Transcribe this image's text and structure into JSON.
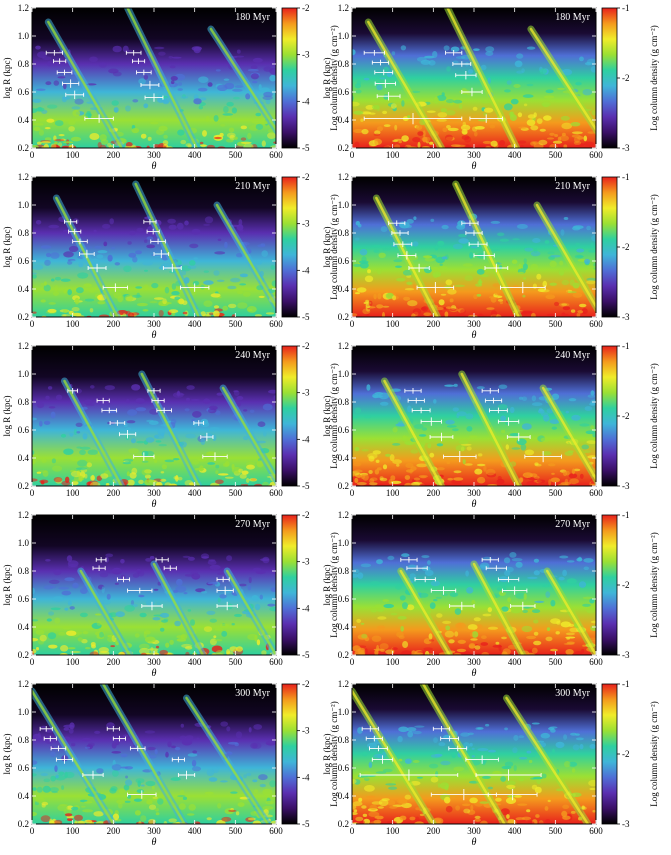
{
  "figure": {
    "colorbar_label": "Log column density (g cm⁻²)",
    "x_axis_label": "θ",
    "y_axis_label": "log R (kpc)",
    "x_ticks": [
      "0",
      "100",
      "200",
      "300",
      "400",
      "500",
      "600"
    ],
    "y_ticks": [
      "0.2",
      "0.4",
      "0.6",
      "0.8",
      "1.0",
      "1.2"
    ],
    "colormap": [
      "#000000",
      "#3a0f66",
      "#5a2fb0",
      "#4f6fd6",
      "#3fb5d8",
      "#2fd0a0",
      "#9be034",
      "#f0ec2a",
      "#f49a1d",
      "#e8211c"
    ],
    "errorbar_color": "#ffffff"
  },
  "chart_data": [
    {
      "type": "heatmap",
      "time_label": "180 Myr",
      "column": "left",
      "xlim": [
        0,
        600
      ],
      "ylim": [
        0.2,
        1.2
      ],
      "cbar_ticks": [
        "-5",
        "-4",
        "-3",
        "-2"
      ],
      "cbar_range": [
        -5,
        -2
      ],
      "arms": [
        {
          "start": 40,
          "slope": 180,
          "scale": 0.9
        },
        {
          "start": 235,
          "slope": 170,
          "scale": 1.0
        },
        {
          "start": 440,
          "slope": 190,
          "scale": 0.85
        }
      ],
      "errorbars": [
        {
          "x": 55,
          "y": 0.88,
          "xerr": 20,
          "yerr": 0.02
        },
        {
          "x": 68,
          "y": 0.82,
          "xerr": 15,
          "yerr": 0.02
        },
        {
          "x": 80,
          "y": 0.74,
          "xerr": 18,
          "yerr": 0.02
        },
        {
          "x": 95,
          "y": 0.66,
          "xerr": 20,
          "yerr": 0.03
        },
        {
          "x": 105,
          "y": 0.58,
          "xerr": 22,
          "yerr": 0.03
        },
        {
          "x": 165,
          "y": 0.41,
          "xerr": 35,
          "yerr": 0.03
        },
        {
          "x": 250,
          "y": 0.88,
          "xerr": 18,
          "yerr": 0.02
        },
        {
          "x": 262,
          "y": 0.82,
          "xerr": 15,
          "yerr": 0.02
        },
        {
          "x": 275,
          "y": 0.74,
          "xerr": 18,
          "yerr": 0.02
        },
        {
          "x": 290,
          "y": 0.65,
          "xerr": 22,
          "yerr": 0.03
        },
        {
          "x": 300,
          "y": 0.56,
          "xerr": 22,
          "yerr": 0.03
        }
      ]
    },
    {
      "type": "heatmap",
      "time_label": "180 Myr",
      "column": "right",
      "xlim": [
        0,
        600
      ],
      "ylim": [
        0.2,
        1.2
      ],
      "cbar_ticks": [
        "-3",
        "-2",
        "-1"
      ],
      "cbar_range": [
        -3,
        -1
      ],
      "arms": [
        {
          "start": 40,
          "slope": 180,
          "scale": 0.9
        },
        {
          "start": 235,
          "slope": 170,
          "scale": 1.0
        },
        {
          "start": 440,
          "slope": 190,
          "scale": 0.85
        }
      ],
      "errorbars": [
        {
          "x": 55,
          "y": 0.88,
          "xerr": 25,
          "yerr": 0.02
        },
        {
          "x": 70,
          "y": 0.81,
          "xerr": 20,
          "yerr": 0.02
        },
        {
          "x": 78,
          "y": 0.74,
          "xerr": 22,
          "yerr": 0.02
        },
        {
          "x": 82,
          "y": 0.66,
          "xerr": 25,
          "yerr": 0.03
        },
        {
          "x": 90,
          "y": 0.57,
          "xerr": 28,
          "yerr": 0.03
        },
        {
          "x": 150,
          "y": 0.41,
          "xerr": 120,
          "yerr": 0.04
        },
        {
          "x": 250,
          "y": 0.88,
          "xerr": 20,
          "yerr": 0.02
        },
        {
          "x": 270,
          "y": 0.8,
          "xerr": 22,
          "yerr": 0.02
        },
        {
          "x": 280,
          "y": 0.72,
          "xerr": 25,
          "yerr": 0.03
        },
        {
          "x": 295,
          "y": 0.6,
          "xerr": 25,
          "yerr": 0.03
        },
        {
          "x": 330,
          "y": 0.41,
          "xerr": 40,
          "yerr": 0.03
        }
      ]
    },
    {
      "type": "heatmap",
      "time_label": "210 Myr",
      "column": "left",
      "xlim": [
        0,
        600
      ],
      "ylim": [
        0.2,
        1.2
      ],
      "cbar_ticks": [
        "-5",
        "-4",
        "-3",
        "-2"
      ],
      "cbar_range": [
        -5,
        -2
      ],
      "arms": [
        {
          "start": 60,
          "slope": 150,
          "scale": 0.85
        },
        {
          "start": 255,
          "slope": 155,
          "scale": 0.95
        },
        {
          "start": 455,
          "slope": 160,
          "scale": 0.8
        }
      ],
      "errorbars": [
        {
          "x": 95,
          "y": 0.88,
          "xerr": 15,
          "yerr": 0.02
        },
        {
          "x": 105,
          "y": 0.81,
          "xerr": 15,
          "yerr": 0.02
        },
        {
          "x": 118,
          "y": 0.74,
          "xerr": 18,
          "yerr": 0.02
        },
        {
          "x": 135,
          "y": 0.65,
          "xerr": 18,
          "yerr": 0.03
        },
        {
          "x": 160,
          "y": 0.55,
          "xerr": 22,
          "yerr": 0.03
        },
        {
          "x": 205,
          "y": 0.41,
          "xerr": 30,
          "yerr": 0.03
        },
        {
          "x": 290,
          "y": 0.88,
          "xerr": 15,
          "yerr": 0.02
        },
        {
          "x": 298,
          "y": 0.81,
          "xerr": 15,
          "yerr": 0.02
        },
        {
          "x": 310,
          "y": 0.74,
          "xerr": 18,
          "yerr": 0.02
        },
        {
          "x": 318,
          "y": 0.65,
          "xerr": 18,
          "yerr": 0.03
        },
        {
          "x": 345,
          "y": 0.55,
          "xerr": 22,
          "yerr": 0.03
        },
        {
          "x": 400,
          "y": 0.41,
          "xerr": 35,
          "yerr": 0.03
        }
      ]
    },
    {
      "type": "heatmap",
      "time_label": "210 Myr",
      "column": "right",
      "xlim": [
        0,
        600
      ],
      "ylim": [
        0.2,
        1.2
      ],
      "cbar_ticks": [
        "-3",
        "-2",
        "-1"
      ],
      "cbar_range": [
        -3,
        -1
      ],
      "arms": [
        {
          "start": 60,
          "slope": 150,
          "scale": 0.85
        },
        {
          "start": 255,
          "slope": 155,
          "scale": 0.95
        },
        {
          "start": 455,
          "slope": 160,
          "scale": 0.8
        }
      ],
      "errorbars": [
        {
          "x": 110,
          "y": 0.87,
          "xerr": 20,
          "yerr": 0.02
        },
        {
          "x": 118,
          "y": 0.8,
          "xerr": 20,
          "yerr": 0.02
        },
        {
          "x": 125,
          "y": 0.72,
          "xerr": 22,
          "yerr": 0.02
        },
        {
          "x": 135,
          "y": 0.64,
          "xerr": 22,
          "yerr": 0.03
        },
        {
          "x": 165,
          "y": 0.55,
          "xerr": 25,
          "yerr": 0.03
        },
        {
          "x": 205,
          "y": 0.41,
          "xerr": 45,
          "yerr": 0.04
        },
        {
          "x": 290,
          "y": 0.87,
          "xerr": 20,
          "yerr": 0.02
        },
        {
          "x": 300,
          "y": 0.8,
          "xerr": 20,
          "yerr": 0.02
        },
        {
          "x": 310,
          "y": 0.72,
          "xerr": 22,
          "yerr": 0.02
        },
        {
          "x": 325,
          "y": 0.64,
          "xerr": 25,
          "yerr": 0.03
        },
        {
          "x": 355,
          "y": 0.55,
          "xerr": 28,
          "yerr": 0.03
        },
        {
          "x": 420,
          "y": 0.41,
          "xerr": 55,
          "yerr": 0.04
        }
      ]
    },
    {
      "type": "heatmap",
      "time_label": "240 Myr",
      "column": "left",
      "xlim": [
        0,
        600
      ],
      "ylim": [
        0.2,
        1.2
      ],
      "cbar_ticks": [
        "-5",
        "-4",
        "-3",
        "-2"
      ],
      "cbar_range": [
        -5,
        -2
      ],
      "arms": [
        {
          "start": 80,
          "slope": 140,
          "scale": 0.75
        },
        {
          "start": 270,
          "slope": 140,
          "scale": 0.8
        },
        {
          "start": 470,
          "slope": 140,
          "scale": 0.7
        }
      ],
      "errorbars": [
        {
          "x": 100,
          "y": 0.88,
          "xerr": 12,
          "yerr": 0.02
        },
        {
          "x": 175,
          "y": 0.81,
          "xerr": 15,
          "yerr": 0.02
        },
        {
          "x": 190,
          "y": 0.74,
          "xerr": 18,
          "yerr": 0.02
        },
        {
          "x": 210,
          "y": 0.65,
          "xerr": 18,
          "yerr": 0.02
        },
        {
          "x": 235,
          "y": 0.57,
          "xerr": 20,
          "yerr": 0.03
        },
        {
          "x": 275,
          "y": 0.41,
          "xerr": 25,
          "yerr": 0.03
        },
        {
          "x": 300,
          "y": 0.88,
          "xerr": 15,
          "yerr": 0.02
        },
        {
          "x": 310,
          "y": 0.81,
          "xerr": 15,
          "yerr": 0.02
        },
        {
          "x": 325,
          "y": 0.74,
          "xerr": 18,
          "yerr": 0.02
        },
        {
          "x": 410,
          "y": 0.65,
          "xerr": 12,
          "yerr": 0.02
        },
        {
          "x": 430,
          "y": 0.55,
          "xerr": 15,
          "yerr": 0.03
        },
        {
          "x": 450,
          "y": 0.41,
          "xerr": 30,
          "yerr": 0.03
        }
      ]
    },
    {
      "type": "heatmap",
      "time_label": "240 Myr",
      "column": "right",
      "xlim": [
        0,
        600
      ],
      "ylim": [
        0.2,
        1.2
      ],
      "cbar_ticks": [
        "-3",
        "-2",
        "-1"
      ],
      "cbar_range": [
        -3,
        -1
      ],
      "arms": [
        {
          "start": 80,
          "slope": 140,
          "scale": 0.75
        },
        {
          "start": 270,
          "slope": 140,
          "scale": 0.8
        },
        {
          "start": 470,
          "slope": 140,
          "scale": 0.7
        }
      ],
      "errorbars": [
        {
          "x": 150,
          "y": 0.88,
          "xerr": 20,
          "yerr": 0.02
        },
        {
          "x": 158,
          "y": 0.81,
          "xerr": 20,
          "yerr": 0.02
        },
        {
          "x": 170,
          "y": 0.74,
          "xerr": 22,
          "yerr": 0.02
        },
        {
          "x": 195,
          "y": 0.66,
          "xerr": 25,
          "yerr": 0.03
        },
        {
          "x": 220,
          "y": 0.55,
          "xerr": 28,
          "yerr": 0.03
        },
        {
          "x": 265,
          "y": 0.41,
          "xerr": 40,
          "yerr": 0.04
        },
        {
          "x": 340,
          "y": 0.88,
          "xerr": 20,
          "yerr": 0.02
        },
        {
          "x": 348,
          "y": 0.81,
          "xerr": 20,
          "yerr": 0.02
        },
        {
          "x": 360,
          "y": 0.74,
          "xerr": 22,
          "yerr": 0.02
        },
        {
          "x": 385,
          "y": 0.66,
          "xerr": 25,
          "yerr": 0.03
        },
        {
          "x": 410,
          "y": 0.55,
          "xerr": 28,
          "yerr": 0.03
        },
        {
          "x": 470,
          "y": 0.41,
          "xerr": 45,
          "yerr": 0.04
        }
      ]
    },
    {
      "type": "heatmap",
      "time_label": "270 Myr",
      "column": "left",
      "xlim": [
        0,
        600
      ],
      "ylim": [
        0.2,
        1.2
      ],
      "cbar_ticks": [
        "-5",
        "-4",
        "-3",
        "-2"
      ],
      "cbar_range": [
        -5,
        -2
      ],
      "arms": [
        {
          "start": 120,
          "slope": 120,
          "scale": 0.6
        },
        {
          "start": 300,
          "slope": 120,
          "scale": 0.65
        },
        {
          "start": 480,
          "slope": 120,
          "scale": 0.6
        }
      ],
      "errorbars": [
        {
          "x": 170,
          "y": 0.88,
          "xerr": 12,
          "yerr": 0.02
        },
        {
          "x": 165,
          "y": 0.82,
          "xerr": 15,
          "yerr": 0.02
        },
        {
          "x": 225,
          "y": 0.74,
          "xerr": 15,
          "yerr": 0.02
        },
        {
          "x": 265,
          "y": 0.66,
          "xerr": 30,
          "yerr": 0.02
        },
        {
          "x": 295,
          "y": 0.55,
          "xerr": 25,
          "yerr": 0.03
        },
        {
          "x": 320,
          "y": 0.88,
          "xerr": 15,
          "yerr": 0.02
        },
        {
          "x": 340,
          "y": 0.82,
          "xerr": 15,
          "yerr": 0.02
        },
        {
          "x": 470,
          "y": 0.74,
          "xerr": 15,
          "yerr": 0.02
        },
        {
          "x": 475,
          "y": 0.66,
          "xerr": 20,
          "yerr": 0.03
        },
        {
          "x": 480,
          "y": 0.55,
          "xerr": 25,
          "yerr": 0.03
        }
      ]
    },
    {
      "type": "heatmap",
      "time_label": "270 Myr",
      "column": "right",
      "xlim": [
        0,
        600
      ],
      "ylim": [
        0.2,
        1.2
      ],
      "cbar_ticks": [
        "-3",
        "-2",
        "-1"
      ],
      "cbar_range": [
        -3,
        -1
      ],
      "arms": [
        {
          "start": 120,
          "slope": 120,
          "scale": 0.6
        },
        {
          "start": 300,
          "slope": 120,
          "scale": 0.65
        },
        {
          "start": 480,
          "slope": 120,
          "scale": 0.6
        }
      ],
      "errorbars": [
        {
          "x": 140,
          "y": 0.88,
          "xerr": 20,
          "yerr": 0.02
        },
        {
          "x": 160,
          "y": 0.82,
          "xerr": 25,
          "yerr": 0.02
        },
        {
          "x": 180,
          "y": 0.74,
          "xerr": 25,
          "yerr": 0.02
        },
        {
          "x": 225,
          "y": 0.66,
          "xerr": 30,
          "yerr": 0.03
        },
        {
          "x": 270,
          "y": 0.55,
          "xerr": 30,
          "yerr": 0.03
        },
        {
          "x": 340,
          "y": 0.88,
          "xerr": 20,
          "yerr": 0.02
        },
        {
          "x": 355,
          "y": 0.82,
          "xerr": 25,
          "yerr": 0.02
        },
        {
          "x": 385,
          "y": 0.74,
          "xerr": 25,
          "yerr": 0.02
        },
        {
          "x": 400,
          "y": 0.66,
          "xerr": 30,
          "yerr": 0.03
        },
        {
          "x": 420,
          "y": 0.55,
          "xerr": 30,
          "yerr": 0.03
        }
      ]
    },
    {
      "type": "heatmap",
      "time_label": "300 Myr",
      "column": "left",
      "xlim": [
        0,
        600
      ],
      "ylim": [
        0.2,
        1.2
      ],
      "cbar_ticks": [
        "-5",
        "-4",
        "-3",
        "-2"
      ],
      "cbar_range": [
        -5,
        -2
      ],
      "arms": [
        {
          "start": 0,
          "slope": 200,
          "scale": 0.95
        },
        {
          "start": 175,
          "slope": 200,
          "scale": 1.0
        },
        {
          "start": 380,
          "slope": 200,
          "scale": 0.9
        }
      ],
      "errorbars": [
        {
          "x": 35,
          "y": 0.88,
          "xerr": 15,
          "yerr": 0.02
        },
        {
          "x": 45,
          "y": 0.81,
          "xerr": 15,
          "yerr": 0.02
        },
        {
          "x": 65,
          "y": 0.74,
          "xerr": 18,
          "yerr": 0.02
        },
        {
          "x": 80,
          "y": 0.66,
          "xerr": 20,
          "yerr": 0.03
        },
        {
          "x": 150,
          "y": 0.55,
          "xerr": 25,
          "yerr": 0.03
        },
        {
          "x": 200,
          "y": 0.88,
          "xerr": 15,
          "yerr": 0.02
        },
        {
          "x": 215,
          "y": 0.81,
          "xerr": 15,
          "yerr": 0.02
        },
        {
          "x": 260,
          "y": 0.74,
          "xerr": 18,
          "yerr": 0.02
        },
        {
          "x": 270,
          "y": 0.41,
          "xerr": 35,
          "yerr": 0.03
        },
        {
          "x": 360,
          "y": 0.66,
          "xerr": 15,
          "yerr": 0.02
        },
        {
          "x": 380,
          "y": 0.55,
          "xerr": 20,
          "yerr": 0.03
        }
      ]
    },
    {
      "type": "heatmap",
      "time_label": "300 Myr",
      "column": "right",
      "xlim": [
        0,
        600
      ],
      "ylim": [
        0.2,
        1.2
      ],
      "cbar_ticks": [
        "-3",
        "-2",
        "-1"
      ],
      "cbar_range": [
        -3,
        -1
      ],
      "arms": [
        {
          "start": 0,
          "slope": 200,
          "scale": 0.95
        },
        {
          "start": 175,
          "slope": 200,
          "scale": 1.0
        },
        {
          "start": 380,
          "slope": 200,
          "scale": 0.9
        }
      ],
      "errorbars": [
        {
          "x": 45,
          "y": 0.88,
          "xerr": 20,
          "yerr": 0.02
        },
        {
          "x": 55,
          "y": 0.81,
          "xerr": 20,
          "yerr": 0.02
        },
        {
          "x": 65,
          "y": 0.74,
          "xerr": 22,
          "yerr": 0.02
        },
        {
          "x": 75,
          "y": 0.66,
          "xerr": 25,
          "yerr": 0.03
        },
        {
          "x": 140,
          "y": 0.55,
          "xerr": 120,
          "yerr": 0.04
        },
        {
          "x": 220,
          "y": 0.88,
          "xerr": 20,
          "yerr": 0.02
        },
        {
          "x": 240,
          "y": 0.81,
          "xerr": 22,
          "yerr": 0.02
        },
        {
          "x": 260,
          "y": 0.74,
          "xerr": 22,
          "yerr": 0.02
        },
        {
          "x": 320,
          "y": 0.66,
          "xerr": 40,
          "yerr": 0.03
        },
        {
          "x": 385,
          "y": 0.55,
          "xerr": 80,
          "yerr": 0.04
        },
        {
          "x": 275,
          "y": 0.41,
          "xerr": 80,
          "yerr": 0.04
        },
        {
          "x": 395,
          "y": 0.41,
          "xerr": 60,
          "yerr": 0.04
        }
      ]
    }
  ]
}
